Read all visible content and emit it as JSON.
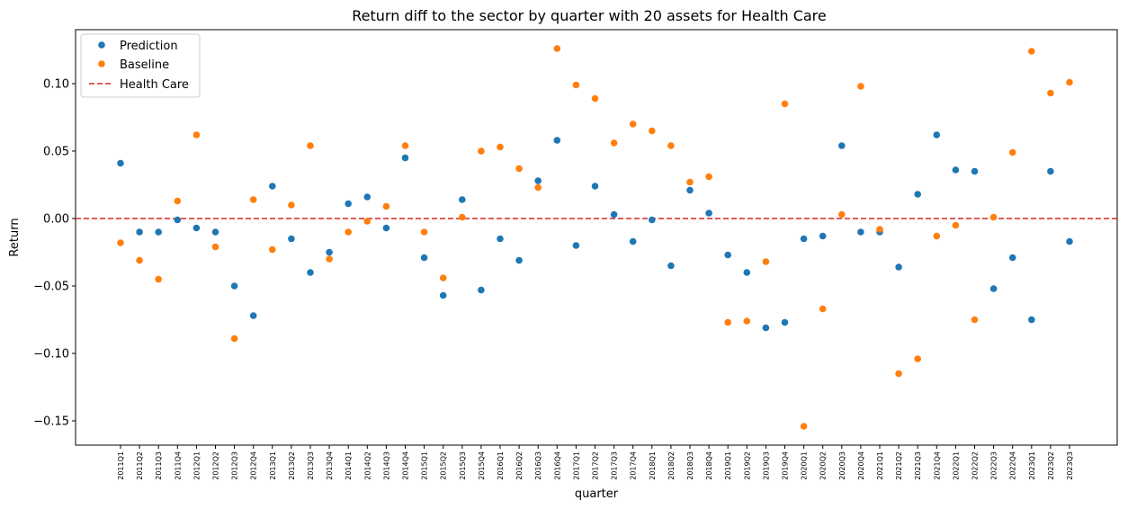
{
  "chart_data": {
    "type": "scatter",
    "title": "Return diff to the sector by quarter with 20 assets for Health Care",
    "xlabel": "quarter",
    "ylabel": "Return",
    "ylim": [
      -0.168,
      0.14
    ],
    "yticks": [
      0.1,
      0.05,
      0.0,
      -0.05,
      -0.1,
      -0.15
    ],
    "ytick_labels": [
      "0.10",
      "0.05",
      "0.00",
      "−0.05",
      "−0.10",
      "−0.15"
    ],
    "grid": false,
    "legend_position": "top-left",
    "categories": [
      "2011Q1",
      "2011Q2",
      "2011Q3",
      "2011Q4",
      "2012Q1",
      "2012Q2",
      "2012Q3",
      "2012Q4",
      "2013Q1",
      "2013Q2",
      "2013Q3",
      "2013Q4",
      "2014Q1",
      "2014Q2",
      "2014Q3",
      "2014Q4",
      "2015Q1",
      "2015Q2",
      "2015Q3",
      "2015Q4",
      "2016Q1",
      "2016Q2",
      "2016Q3",
      "2016Q4",
      "2017Q1",
      "2017Q2",
      "2017Q3",
      "2017Q4",
      "2018Q1",
      "2018Q2",
      "2018Q3",
      "2018Q4",
      "2019Q1",
      "2019Q2",
      "2019Q3",
      "2019Q4",
      "2020Q1",
      "2020Q2",
      "2020Q3",
      "2020Q4",
      "2021Q1",
      "2021Q2",
      "2021Q3",
      "2021Q4",
      "2022Q1",
      "2022Q2",
      "2022Q3",
      "2022Q4",
      "2023Q1",
      "2023Q2",
      "2023Q3"
    ],
    "series": [
      {
        "name": "Prediction",
        "color": "#1f77b4",
        "marker": "circle",
        "values": [
          0.041,
          -0.01,
          -0.01,
          -0.001,
          -0.007,
          -0.01,
          -0.05,
          -0.072,
          0.024,
          -0.015,
          -0.04,
          -0.025,
          0.011,
          0.016,
          -0.007,
          0.045,
          -0.029,
          -0.057,
          0.014,
          -0.053,
          -0.015,
          -0.031,
          0.028,
          0.058,
          -0.02,
          0.024,
          0.003,
          -0.017,
          -0.001,
          -0.035,
          0.021,
          0.004,
          -0.027,
          -0.04,
          -0.081,
          -0.077,
          -0.015,
          -0.013,
          0.054,
          -0.01,
          -0.01,
          -0.036,
          0.018,
          0.062,
          0.036,
          0.035,
          -0.052,
          -0.029,
          -0.075,
          0.035,
          -0.017
        ]
      },
      {
        "name": "Baseline",
        "color": "#ff7f0e",
        "marker": "circle",
        "values": [
          -0.018,
          -0.031,
          -0.045,
          0.013,
          0.062,
          -0.021,
          -0.089,
          0.014,
          -0.023,
          0.01,
          0.054,
          -0.03,
          -0.01,
          -0.002,
          0.009,
          0.054,
          -0.01,
          -0.044,
          0.001,
          0.05,
          0.053,
          0.037,
          0.023,
          0.126,
          0.099,
          0.089,
          0.056,
          0.07,
          0.065,
          0.054,
          0.027,
          0.031,
          -0.077,
          -0.076,
          -0.032,
          0.085,
          -0.154,
          -0.067,
          0.003,
          0.098,
          -0.008,
          -0.115,
          -0.104,
          -0.013,
          -0.005,
          -0.075,
          0.001,
          0.049,
          0.124,
          0.093,
          0.101
        ]
      }
    ],
    "reference_line": {
      "name": "Health Care",
      "y": 0.0,
      "color": "#d62728",
      "style": "dashed"
    }
  }
}
